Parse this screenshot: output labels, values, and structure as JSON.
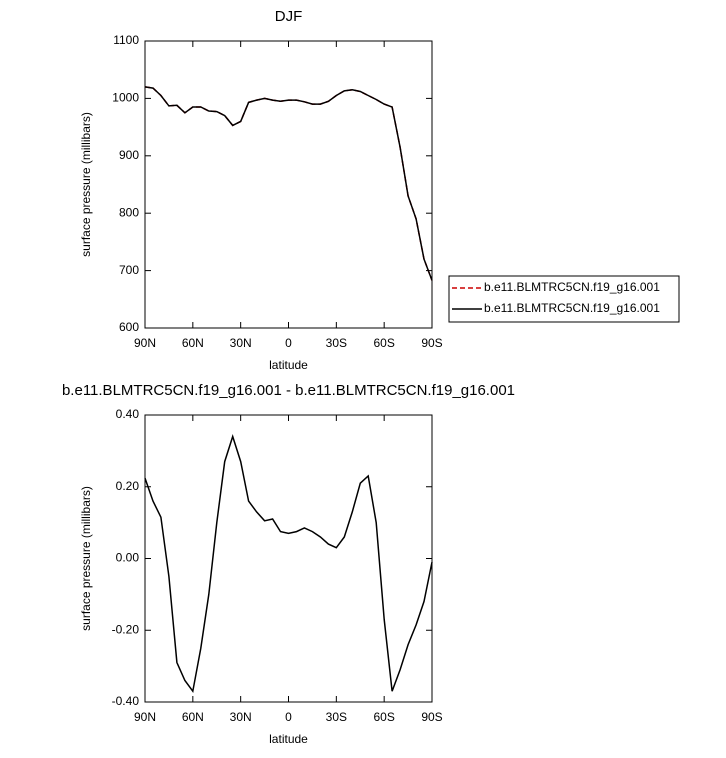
{
  "chart_data": [
    {
      "type": "line",
      "title": "DJF",
      "xlabel": "latitude",
      "ylabel": "surface pressure (millibars)",
      "x": [
        90,
        85,
        80,
        75,
        70,
        65,
        60,
        55,
        50,
        45,
        40,
        35,
        30,
        25,
        20,
        15,
        10,
        5,
        0,
        -5,
        -10,
        -15,
        -20,
        -25,
        -30,
        -35,
        -40,
        -45,
        -50,
        -55,
        -60,
        -65,
        -70,
        -75,
        -80,
        -85,
        -90
      ],
      "xlim": [
        90,
        -90
      ],
      "xticks": [
        {
          "value": 90,
          "label": "90N"
        },
        {
          "value": 60,
          "label": "60N"
        },
        {
          "value": 30,
          "label": "30N"
        },
        0,
        {
          "value": -30,
          "label": "30S"
        },
        {
          "value": -60,
          "label": "60S"
        },
        {
          "value": -90,
          "label": "90S"
        }
      ],
      "ylim": [
        600,
        1100
      ],
      "yticks": [
        600,
        700,
        800,
        900,
        1000,
        1100
      ],
      "legend": "right",
      "series": [
        {
          "name": "b.e11.BLMTRC5CN.f19_g16.001",
          "color": "#cc0000",
          "line_style": "dashed",
          "values": [
            1020,
            1018,
            1005,
            987,
            988,
            975,
            985,
            985,
            978,
            977,
            970,
            953,
            960,
            993,
            997,
            1000,
            997,
            995,
            997,
            997,
            994,
            990,
            990,
            995,
            1005,
            1013,
            1015,
            1012,
            1005,
            998,
            990,
            985,
            915,
            830,
            790,
            720,
            683
          ]
        },
        {
          "name": "b.e11.BLMTRC5CN.f19_g16.001",
          "color": "#000000",
          "line_style": "solid",
          "values": [
            1020,
            1018,
            1005,
            987,
            988,
            975,
            985,
            985,
            978,
            977,
            970,
            953,
            960,
            993,
            997,
            1000,
            997,
            995,
            997,
            997,
            994,
            990,
            990,
            995,
            1005,
            1013,
            1015,
            1012,
            1005,
            998,
            990,
            985,
            915,
            830,
            790,
            720,
            683
          ]
        }
      ]
    },
    {
      "type": "line",
      "title": "b.e11.BLMTRC5CN.f19_g16.001 - b.e11.BLMTRC5CN.f19_g16.001",
      "xlabel": "latitude",
      "ylabel": "surface pressure (millibars)",
      "x": [
        90,
        85,
        80,
        75,
        70,
        65,
        60,
        55,
        50,
        45,
        40,
        35,
        30,
        25,
        20,
        15,
        10,
        5,
        0,
        -5,
        -10,
        -15,
        -20,
        -25,
        -30,
        -35,
        -40,
        -45,
        -50,
        -55,
        -60,
        -65,
        -70,
        -75,
        -80,
        -85,
        -90
      ],
      "xlim": [
        90,
        -90
      ],
      "xticks": [
        {
          "value": 90,
          "label": "90N"
        },
        {
          "value": 60,
          "label": "60N"
        },
        {
          "value": 30,
          "label": "30N"
        },
        0,
        {
          "value": -30,
          "label": "30S"
        },
        {
          "value": -60,
          "label": "60S"
        },
        {
          "value": -90,
          "label": "90S"
        }
      ],
      "ylim": [
        -0.4,
        0.4
      ],
      "yticks": [
        {
          "value": -0.4,
          "label": "-0.40"
        },
        {
          "value": -0.2,
          "label": "-0.20"
        },
        {
          "value": 0,
          "label": "0.00"
        },
        {
          "value": 0.2,
          "label": "0.20"
        },
        {
          "value": 0.4,
          "label": "0.40"
        }
      ],
      "series": [
        {
          "color": "#000000",
          "line_style": "solid",
          "values": [
            0.224,
            0.16,
            0.115,
            -0.05,
            -0.29,
            -0.34,
            -0.37,
            -0.25,
            -0.1,
            0.1,
            0.27,
            0.34,
            0.27,
            0.16,
            0.13,
            0.105,
            0.11,
            0.075,
            0.07,
            0.075,
            0.085,
            0.075,
            0.06,
            0.04,
            0.03,
            0.06,
            0.13,
            0.21,
            0.23,
            0.1,
            -0.17,
            -0.37,
            -0.31,
            -0.24,
            -0.185,
            -0.12,
            -0.01
          ]
        }
      ]
    }
  ]
}
